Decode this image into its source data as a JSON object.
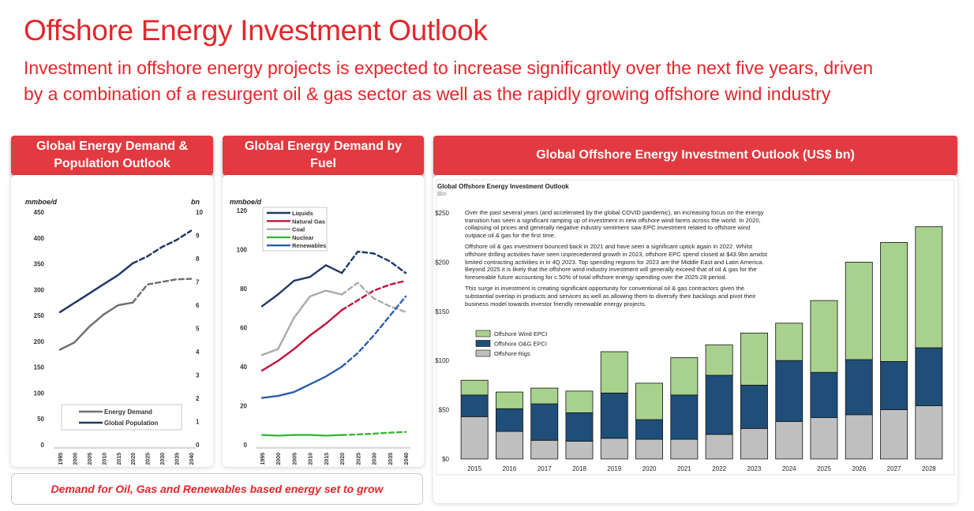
{
  "header": {
    "title": "Offshore Energy Investment Outlook",
    "subtitle": "Investment in offshore energy projects is expected to increase significantly over the next five years, driven by a combination of a resurgent oil & gas sector as well as the rapidly growing offshore wind industry"
  },
  "panels": {
    "p1_title": "Global Energy Demand & Population Outlook",
    "p2_title": "Global Energy Demand by Fuel",
    "p3_title": "Global Offshore Energy Investment Outlook (US$ bn)"
  },
  "footer": {
    "text": "Demand for Oil, Gas and Renewables based energy set to grow"
  },
  "colors": {
    "accent": "#e4262b",
    "header_bg": "#e23a40",
    "liquids": "#1f3864",
    "natural_gas": "#c0143c",
    "coal": "#aaaaaa",
    "nuclear": "#3cb43c",
    "renewables": "#2e5ea8",
    "wind": "#a9d18e",
    "og": "#1f4e79",
    "rigs": "#bfbfbf"
  },
  "commentary": [
    "Over the past several years (and accelerated by the global COVID pandemic), an increasing focus on the energy transition has seen a significant ramping up of investment in new offshore wind farms across the world. In 2020, collapsing oil prices and generally negative industry sentiment saw EPC investment related to offshore wind outpace oil & gas for the first time.",
    "Offshore oil & gas investment bounced back in 2021 and have seen a significant uptick again in 2022. Whilst offshore drilling activities have seen unprecedented growth in 2023, offshore EPC spend closed at $43.9bn amidst limited contracting activities in in 4Q 2023. Top spending regions for 2023 are the Middle East and Latin America. Beyond 2025 it is likely that the offshore wind industry investment will generally exceed that of oil & gas for the foreseeable future accounting for c.50% of total offshore energy spending over the 2025-28 period.",
    "This surge in investment is creating significant opportunity for conventional oil & gas contractors given the substantial overlap in products and services as well as allowing them to diversify their backlogs and pivot their business model towards investor friendly renewable energy projects."
  ],
  "chart_data": [
    {
      "type": "line",
      "title": "Global Energy Demand & Population Outlook",
      "ylabel_left": "mmboe/d",
      "ylabel_right": "bn",
      "ylim_left": [
        0,
        450
      ],
      "ylim_right": [
        0,
        10
      ],
      "yticks_left": [
        0,
        50,
        100,
        150,
        200,
        250,
        300,
        350,
        400,
        450
      ],
      "yticks_right": [
        0,
        1,
        2,
        3,
        4,
        5,
        6,
        7,
        8,
        9,
        10
      ],
      "x": [
        "1995",
        "2000",
        "2005",
        "2010",
        "2015",
        "2020",
        "2025",
        "2030",
        "2035",
        "2040"
      ],
      "projection_start": "2020",
      "series": [
        {
          "name": "Energy Demand",
          "axis": "left",
          "color": "#707070",
          "values": [
            184,
            198,
            228,
            252,
            270,
            275,
            310,
            315,
            320,
            321
          ]
        },
        {
          "name": "Global Population",
          "axis": "right",
          "color": "#1f3864",
          "values": [
            5.7,
            6.1,
            6.5,
            6.9,
            7.3,
            7.8,
            8.1,
            8.5,
            8.8,
            9.2
          ]
        }
      ],
      "legend": "bottom-right"
    },
    {
      "type": "line",
      "title": "Global Energy Demand by Fuel",
      "ylabel": "mmboe/d",
      "ylim": [
        0,
        120
      ],
      "yticks": [
        0,
        20,
        40,
        60,
        80,
        100,
        120
      ],
      "x": [
        "1995",
        "2000",
        "2005",
        "2010",
        "2015",
        "2020",
        "2025",
        "2030",
        "2035",
        "2040"
      ],
      "projection_start": "2020",
      "series": [
        {
          "name": "Liquids",
          "color": "#1f3864",
          "values": [
            71,
            77,
            84,
            86,
            92,
            88,
            99,
            98,
            94,
            88
          ]
        },
        {
          "name": "Natural Gas",
          "color": "#c0143c",
          "values": [
            38,
            43,
            49,
            56,
            62,
            69,
            74,
            79,
            82,
            84
          ]
        },
        {
          "name": "Coal",
          "color": "#aaaaaa",
          "values": [
            46,
            49,
            65,
            76,
            79,
            77,
            83,
            75,
            71,
            68
          ]
        },
        {
          "name": "Nuclear",
          "color": "#3cb43c",
          "values": [
            5,
            4.7,
            5,
            5,
            4.7,
            5,
            5.3,
            5.7,
            6.2,
            6.6
          ]
        },
        {
          "name": "Renewables",
          "color": "#2e5ea8",
          "values": [
            24,
            25,
            27,
            31,
            35,
            40,
            47,
            56,
            66,
            76
          ]
        }
      ],
      "legend": "top-left"
    },
    {
      "type": "bar",
      "stacked": true,
      "title": "Global Offshore Energy Investment Outlook",
      "subtitle": "$bn",
      "ylim": [
        0,
        250
      ],
      "yticks": [
        "$0",
        "$50",
        "$100",
        "$150",
        "$200",
        "$250"
      ],
      "categories": [
        "2015",
        "2016",
        "2017",
        "2018",
        "2019",
        "2020",
        "2021",
        "2022",
        "2023",
        "2024",
        "2025",
        "2026",
        "2027",
        "2028"
      ],
      "series": [
        {
          "name": "Offshore Rigs",
          "color": "#bfbfbf",
          "values": [
            43,
            28,
            19,
            18,
            21,
            20,
            20,
            25,
            31,
            38,
            42,
            45,
            50,
            54
          ]
        },
        {
          "name": "Offshore O&G EPCI",
          "color": "#1f4e79",
          "values": [
            22,
            23,
            37,
            29,
            46,
            20,
            45,
            60,
            44,
            62,
            46,
            56,
            49,
            59
          ]
        },
        {
          "name": "Offshore Wind EPCI",
          "color": "#a9d18e",
          "values": [
            15,
            17,
            16,
            22,
            42,
            37,
            38,
            31,
            53,
            38,
            73,
            99,
            121,
            123
          ]
        }
      ],
      "legend": "left"
    }
  ]
}
